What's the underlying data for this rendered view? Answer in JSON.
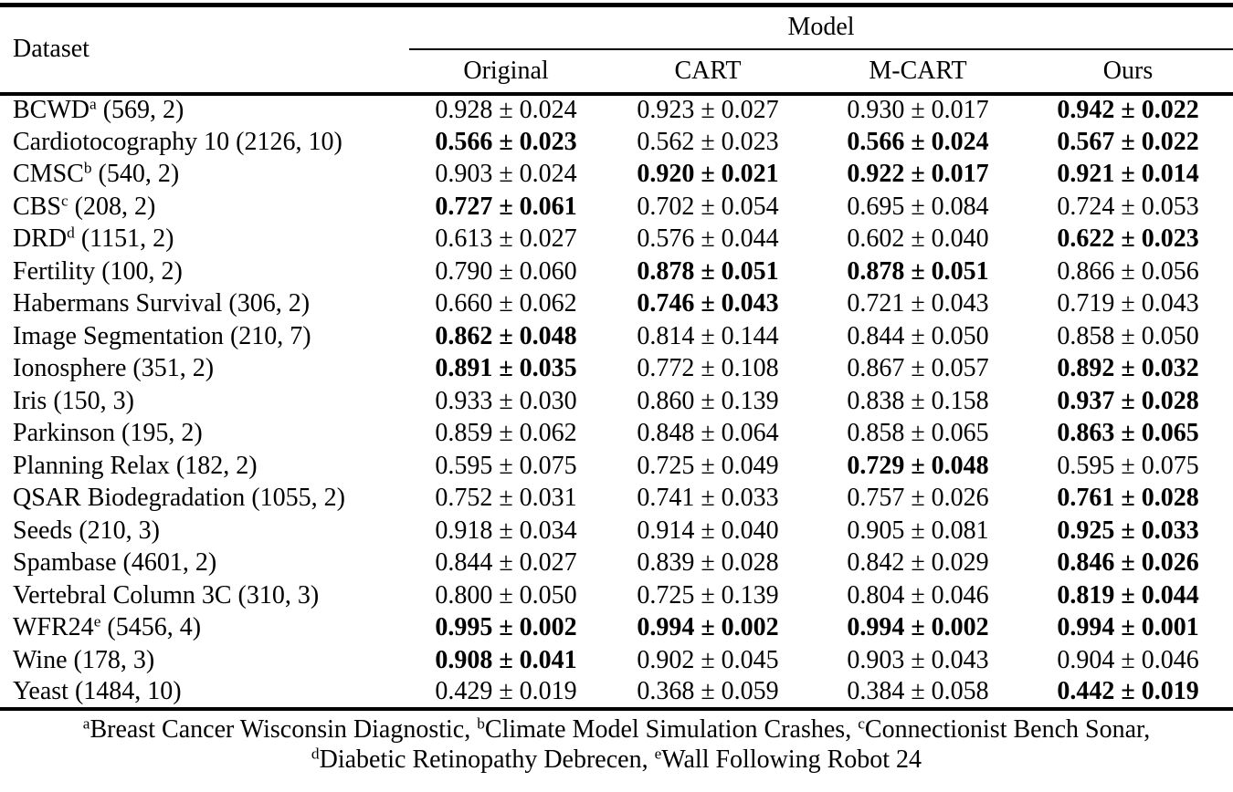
{
  "header": {
    "dataset_label": "Dataset",
    "model_group_label": "Model",
    "model_columns": [
      "Original",
      "CART",
      "M-CART",
      "Ours"
    ]
  },
  "table": {
    "rows": [
      {
        "name": "BCWD",
        "sup": "a",
        "meta": "(569, 2)",
        "cells": [
          {
            "value": "0.928 ± 0.024",
            "bold": false
          },
          {
            "value": "0.923 ± 0.027",
            "bold": false
          },
          {
            "value": "0.930 ± 0.017",
            "bold": false
          },
          {
            "value": "0.942 ± 0.022",
            "bold": true
          }
        ]
      },
      {
        "name": "Cardiotocography 10",
        "sup": "",
        "meta": "(2126, 10)",
        "cells": [
          {
            "value": "0.566 ± 0.023",
            "bold": true
          },
          {
            "value": "0.562 ± 0.023",
            "bold": false
          },
          {
            "value": "0.566 ± 0.024",
            "bold": true
          },
          {
            "value": "0.567 ± 0.022",
            "bold": true
          }
        ]
      },
      {
        "name": "CMSC",
        "sup": "b",
        "meta": "(540, 2)",
        "cells": [
          {
            "value": "0.903 ± 0.024",
            "bold": false
          },
          {
            "value": "0.920 ± 0.021",
            "bold": true
          },
          {
            "value": "0.922 ± 0.017",
            "bold": true
          },
          {
            "value": "0.921 ± 0.014",
            "bold": true
          }
        ]
      },
      {
        "name": "CBS",
        "sup": "c",
        "meta": "(208, 2)",
        "cells": [
          {
            "value": "0.727 ± 0.061",
            "bold": true
          },
          {
            "value": "0.702 ± 0.054",
            "bold": false
          },
          {
            "value": "0.695 ± 0.084",
            "bold": false
          },
          {
            "value": "0.724 ± 0.053",
            "bold": false
          }
        ]
      },
      {
        "name": "DRD",
        "sup": "d",
        "meta": "(1151, 2)",
        "cells": [
          {
            "value": "0.613 ± 0.027",
            "bold": false
          },
          {
            "value": "0.576 ± 0.044",
            "bold": false
          },
          {
            "value": "0.602 ± 0.040",
            "bold": false
          },
          {
            "value": "0.622 ± 0.023",
            "bold": true
          }
        ]
      },
      {
        "name": "Fertility",
        "sup": "",
        "meta": "(100, 2)",
        "cells": [
          {
            "value": "0.790 ± 0.060",
            "bold": false
          },
          {
            "value": "0.878 ± 0.051",
            "bold": true
          },
          {
            "value": "0.878 ± 0.051",
            "bold": true
          },
          {
            "value": "0.866 ± 0.056",
            "bold": false
          }
        ]
      },
      {
        "name": "Habermans Survival",
        "sup": "",
        "meta": "(306, 2)",
        "cells": [
          {
            "value": "0.660 ± 0.062",
            "bold": false
          },
          {
            "value": "0.746 ± 0.043",
            "bold": true
          },
          {
            "value": "0.721 ± 0.043",
            "bold": false
          },
          {
            "value": "0.719 ± 0.043",
            "bold": false
          }
        ]
      },
      {
        "name": "Image Segmentation",
        "sup": "",
        "meta": "(210, 7)",
        "cells": [
          {
            "value": "0.862 ± 0.048",
            "bold": true
          },
          {
            "value": "0.814 ± 0.144",
            "bold": false
          },
          {
            "value": "0.844 ± 0.050",
            "bold": false
          },
          {
            "value": "0.858 ± 0.050",
            "bold": false
          }
        ]
      },
      {
        "name": "Ionosphere",
        "sup": "",
        "meta": "(351, 2)",
        "cells": [
          {
            "value": "0.891 ± 0.035",
            "bold": true
          },
          {
            "value": "0.772 ± 0.108",
            "bold": false
          },
          {
            "value": "0.867 ± 0.057",
            "bold": false
          },
          {
            "value": "0.892 ± 0.032",
            "bold": true
          }
        ]
      },
      {
        "name": "Iris",
        "sup": "",
        "meta": "(150, 3)",
        "cells": [
          {
            "value": "0.933 ± 0.030",
            "bold": false
          },
          {
            "value": "0.860 ± 0.139",
            "bold": false
          },
          {
            "value": "0.838 ± 0.158",
            "bold": false
          },
          {
            "value": "0.937 ± 0.028",
            "bold": true
          }
        ]
      },
      {
        "name": "Parkinson",
        "sup": "",
        "meta": "(195, 2)",
        "cells": [
          {
            "value": "0.859 ± 0.062",
            "bold": false
          },
          {
            "value": "0.848 ± 0.064",
            "bold": false
          },
          {
            "value": "0.858 ± 0.065",
            "bold": false
          },
          {
            "value": "0.863 ± 0.065",
            "bold": true
          }
        ]
      },
      {
        "name": "Planning Relax",
        "sup": "",
        "meta": "(182, 2)",
        "cells": [
          {
            "value": "0.595 ± 0.075",
            "bold": false
          },
          {
            "value": "0.725 ± 0.049",
            "bold": false
          },
          {
            "value": "0.729 ± 0.048",
            "bold": true
          },
          {
            "value": "0.595 ± 0.075",
            "bold": false
          }
        ]
      },
      {
        "name": "QSAR Biodegradation",
        "sup": "",
        "meta": "(1055, 2)",
        "cells": [
          {
            "value": "0.752 ± 0.031",
            "bold": false
          },
          {
            "value": "0.741 ± 0.033",
            "bold": false
          },
          {
            "value": "0.757 ± 0.026",
            "bold": false
          },
          {
            "value": "0.761 ± 0.028",
            "bold": true
          }
        ]
      },
      {
        "name": "Seeds",
        "sup": "",
        "meta": "(210, 3)",
        "cells": [
          {
            "value": "0.918 ± 0.034",
            "bold": false
          },
          {
            "value": "0.914 ± 0.040",
            "bold": false
          },
          {
            "value": "0.905 ± 0.081",
            "bold": false
          },
          {
            "value": "0.925 ± 0.033",
            "bold": true
          }
        ]
      },
      {
        "name": "Spambase",
        "sup": "",
        "meta": "(4601, 2)",
        "cells": [
          {
            "value": "0.844 ± 0.027",
            "bold": false
          },
          {
            "value": "0.839 ± 0.028",
            "bold": false
          },
          {
            "value": "0.842 ± 0.029",
            "bold": false
          },
          {
            "value": "0.846 ± 0.026",
            "bold": true
          }
        ]
      },
      {
        "name": "Vertebral Column 3C",
        "sup": "",
        "meta": "(310, 3)",
        "cells": [
          {
            "value": "0.800 ± 0.050",
            "bold": false
          },
          {
            "value": "0.725 ± 0.139",
            "bold": false
          },
          {
            "value": "0.804 ± 0.046",
            "bold": false
          },
          {
            "value": "0.819 ± 0.044",
            "bold": true
          }
        ]
      },
      {
        "name": "WFR24",
        "sup": "e",
        "meta": "(5456, 4)",
        "cells": [
          {
            "value": "0.995 ± 0.002",
            "bold": true
          },
          {
            "value": "0.994 ± 0.002",
            "bold": true
          },
          {
            "value": "0.994 ± 0.002",
            "bold": true
          },
          {
            "value": "0.994 ± 0.001",
            "bold": true
          }
        ]
      },
      {
        "name": "Wine",
        "sup": "",
        "meta": "(178, 3)",
        "cells": [
          {
            "value": "0.908 ± 0.041",
            "bold": true
          },
          {
            "value": "0.902 ± 0.045",
            "bold": false
          },
          {
            "value": "0.903 ± 0.043",
            "bold": false
          },
          {
            "value": "0.904 ± 0.046",
            "bold": false
          }
        ]
      },
      {
        "name": "Yeast",
        "sup": "",
        "meta": "(1484, 10)",
        "cells": [
          {
            "value": "0.429 ± 0.019",
            "bold": false
          },
          {
            "value": "0.368 ± 0.059",
            "bold": false
          },
          {
            "value": "0.384 ± 0.058",
            "bold": false
          },
          {
            "value": "0.442 ± 0.019",
            "bold": true
          }
        ]
      }
    ]
  },
  "footnotes": {
    "line1": [
      {
        "sup": "a",
        "text": "Breast Cancer Wisconsin Diagnostic, "
      },
      {
        "sup": "b",
        "text": "Climate Model Simulation Crashes, "
      },
      {
        "sup": "c",
        "text": "Connectionist Bench Sonar,"
      }
    ],
    "line2": [
      {
        "sup": "d",
        "text": "Diabetic Retinopathy Debrecen, "
      },
      {
        "sup": "e",
        "text": "Wall Following Robot 24"
      }
    ]
  },
  "colors": {
    "text": "#000000",
    "background": "#ffffff",
    "rule": "#000000"
  }
}
